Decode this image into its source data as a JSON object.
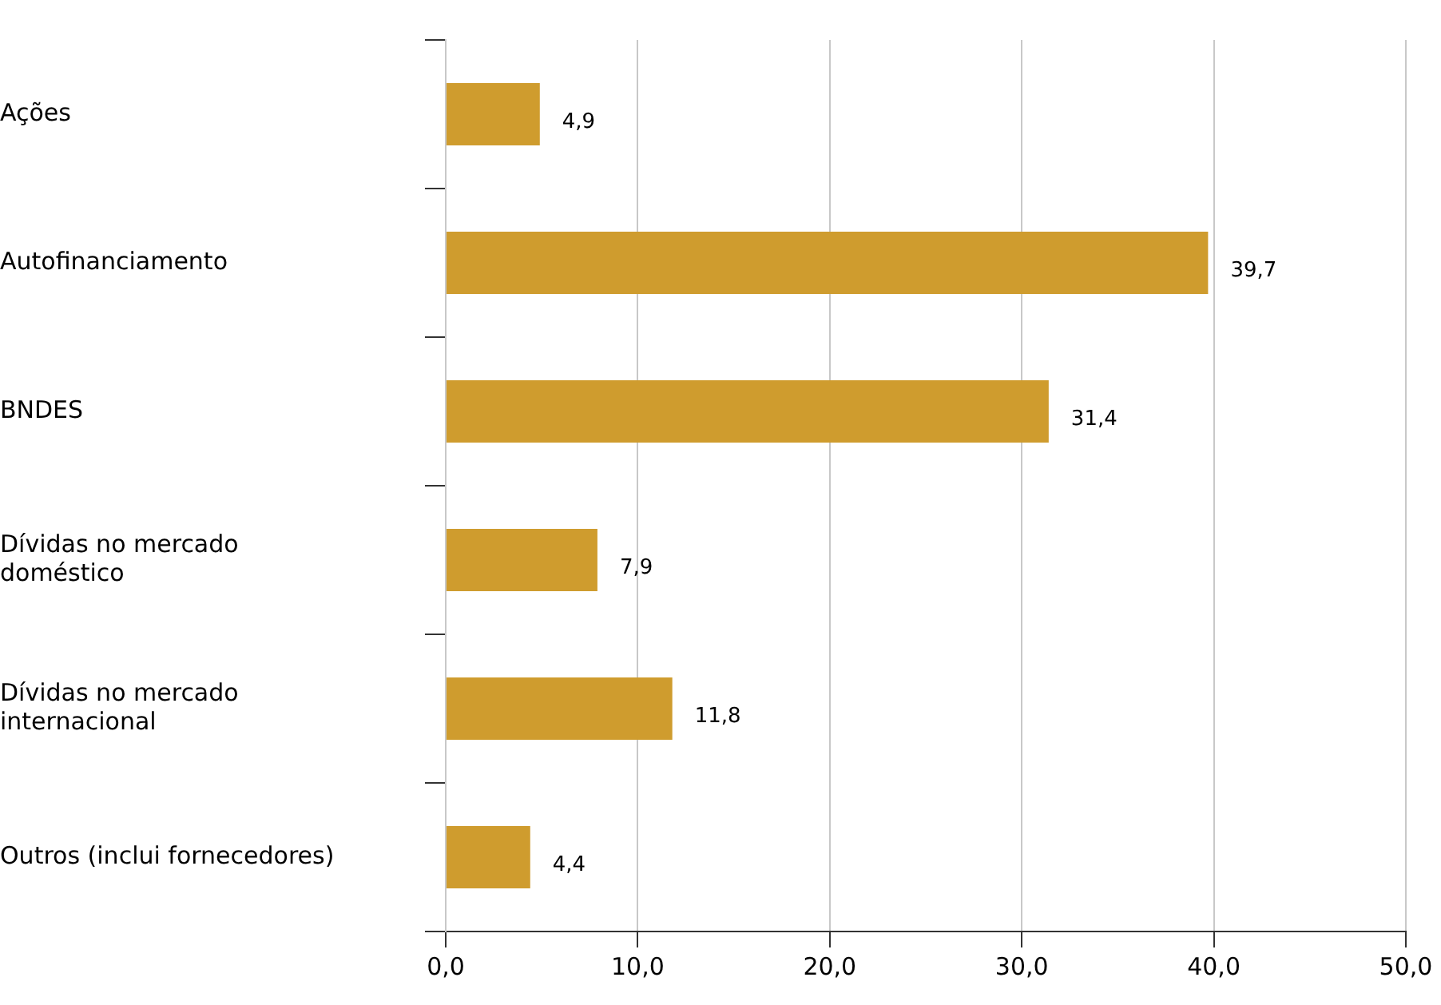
{
  "chart_data": {
    "type": "bar",
    "orientation": "horizontal",
    "categories": [
      "Ações",
      "Autofinanciamento",
      "BNDES",
      "Dívidas no mercado\ndoméstico",
      "Dívidas no mercado\ninternacional",
      "Outros (inclui fornecedores)"
    ],
    "values": [
      4.9,
      39.7,
      31.4,
      7.9,
      11.8,
      4.4
    ],
    "value_labels": [
      "4,9",
      "39,7",
      "31,4",
      "7,9",
      "11,8",
      "4,4"
    ],
    "color": "#cf9c2e",
    "xlim": [
      0,
      50
    ],
    "xticks": [
      {
        "value": 0,
        "label": "0,0"
      },
      {
        "value": 10,
        "label": "10,0"
      },
      {
        "value": 20,
        "label": "20,0"
      },
      {
        "value": 30,
        "label": "30,0"
      },
      {
        "value": 40,
        "label": "40,0"
      },
      {
        "value": 50,
        "label": "50,0"
      }
    ],
    "grid": "x",
    "legend": false
  }
}
